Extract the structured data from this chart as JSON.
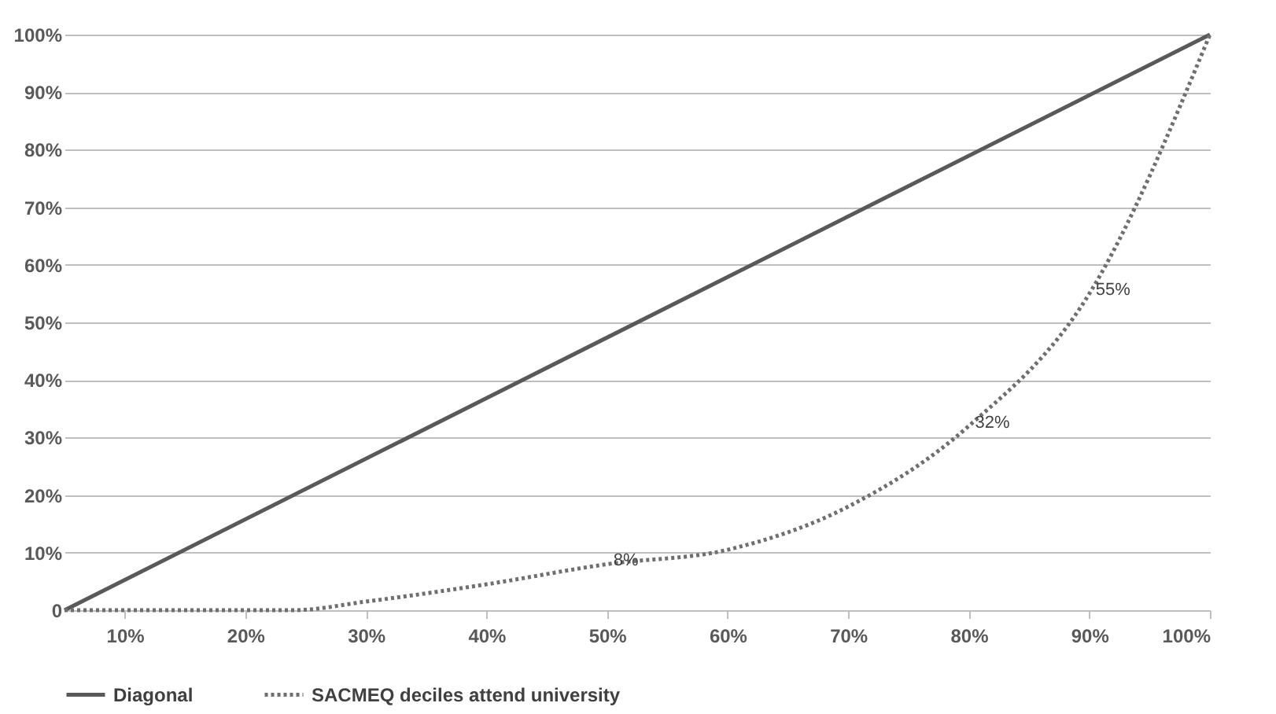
{
  "chart_data": {
    "type": "line",
    "legend": "bottom",
    "grid": "y",
    "marker": "none",
    "xlim": [
      5,
      100
    ],
    "xticks": [
      {
        "value": 10,
        "label": "10%"
      },
      {
        "value": 20,
        "label": "20%"
      },
      {
        "value": 30,
        "label": "30%"
      },
      {
        "value": 40,
        "label": "40%"
      },
      {
        "value": 50,
        "label": "50%"
      },
      {
        "value": 60,
        "label": "60%"
      },
      {
        "value": 70,
        "label": "70%"
      },
      {
        "value": 80,
        "label": "80%"
      },
      {
        "value": 90,
        "label": "90%"
      },
      {
        "value": 100,
        "label": "100%"
      }
    ],
    "ylim": [
      0,
      100
    ],
    "yticks": [
      0,
      {
        "value": 10,
        "label": "10%"
      },
      {
        "value": 20,
        "label": "20%"
      },
      {
        "value": 30,
        "label": "30%"
      },
      {
        "value": 40,
        "label": "40%"
      },
      {
        "value": 50,
        "label": "50%"
      },
      {
        "value": 60,
        "label": "60%"
      },
      {
        "value": 70,
        "label": "70%"
      },
      {
        "value": 80,
        "label": "80%"
      },
      {
        "value": 90,
        "label": "90%"
      },
      {
        "value": 100,
        "label": "100%"
      }
    ],
    "series": [
      {
        "name": "Diagonal",
        "color": "#595959",
        "line_style": "solid",
        "x": [
          5,
          100
        ],
        "values": [
          0,
          100
        ]
      },
      {
        "name": "SACMEQ deciles attend university",
        "color": "#6f6f6f",
        "line_style": "dotted",
        "x": [
          5,
          24,
          30,
          40,
          50,
          60,
          70,
          80,
          90,
          100
        ],
        "values": [
          0,
          0,
          1.5,
          4.5,
          8,
          10.5,
          18,
          32,
          55,
          100
        ],
        "value_labels": [
          null,
          null,
          null,
          null,
          "8%",
          null,
          null,
          "32%",
          "55%",
          null
        ]
      }
    ]
  }
}
